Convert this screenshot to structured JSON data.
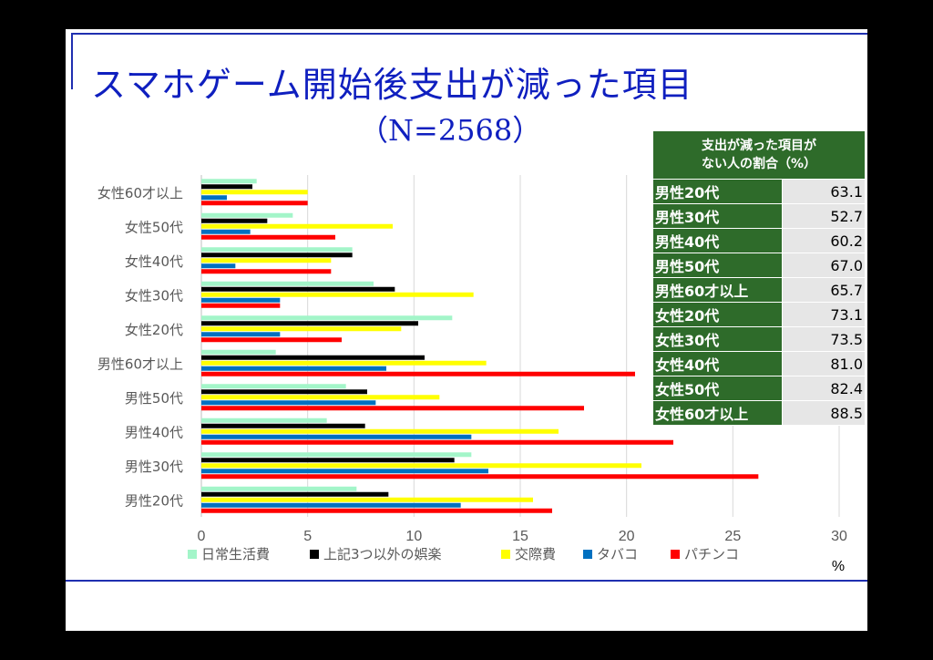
{
  "title": "スマホゲーム開始後支出が減った項目",
  "subtitle": "（N=2568）",
  "colors": {
    "title": "#0f1fbf",
    "table_header_bg": "#2e6b2a",
    "table_value_bg": "#e6e6e6"
  },
  "chart_data": {
    "type": "bar",
    "orientation": "horizontal",
    "categories": [
      "男性20代",
      "男性30代",
      "男性40代",
      "男性50代",
      "男性60才以上",
      "女性20代",
      "女性30代",
      "女性40代",
      "女性50代",
      "女性60才以上"
    ],
    "series": [
      {
        "name": "日常生活費",
        "color": "#a3f5c9",
        "values": [
          7.3,
          12.7,
          5.9,
          6.8,
          3.5,
          11.8,
          8.1,
          7.1,
          4.3,
          2.6
        ]
      },
      {
        "name": "上記3つ以外の娯楽",
        "color": "#000000",
        "values": [
          8.8,
          11.9,
          7.7,
          7.8,
          10.5,
          10.2,
          9.1,
          7.1,
          3.1,
          2.4
        ]
      },
      {
        "name": "交際費",
        "color": "#ffff00",
        "values": [
          15.6,
          20.7,
          16.8,
          11.2,
          13.4,
          9.4,
          12.8,
          6.1,
          9.0,
          5.0
        ]
      },
      {
        "name": "タバコ",
        "color": "#0070c0",
        "values": [
          12.2,
          13.5,
          12.7,
          8.2,
          8.7,
          3.7,
          3.7,
          1.6,
          2.3,
          1.2
        ]
      },
      {
        "name": "パチンコ",
        "color": "#ff0000",
        "values": [
          16.5,
          26.2,
          22.2,
          18.0,
          20.4,
          6.6,
          3.7,
          6.1,
          6.3,
          5.0
        ]
      }
    ],
    "xlim": [
      0,
      30
    ],
    "xticks": [
      0,
      5,
      10,
      15,
      20,
      25,
      30
    ],
    "xlabel": "%",
    "grid": true,
    "legend": "bottom"
  },
  "table": {
    "header": "支出が減った項目が\nない人の割合（%）",
    "rows": [
      {
        "label": "男性20代",
        "value": "63.1"
      },
      {
        "label": "男性30代",
        "value": "52.7"
      },
      {
        "label": "男性40代",
        "value": "60.2"
      },
      {
        "label": "男性50代",
        "value": "67.0"
      },
      {
        "label": "男性60才以上",
        "value": "65.7"
      },
      {
        "label": "女性20代",
        "value": "73.1"
      },
      {
        "label": "女性30代",
        "value": "73.5"
      },
      {
        "label": "女性40代",
        "value": "81.0"
      },
      {
        "label": "女性50代",
        "value": "82.4"
      },
      {
        "label": "女性60才以上",
        "value": "88.5"
      }
    ]
  }
}
